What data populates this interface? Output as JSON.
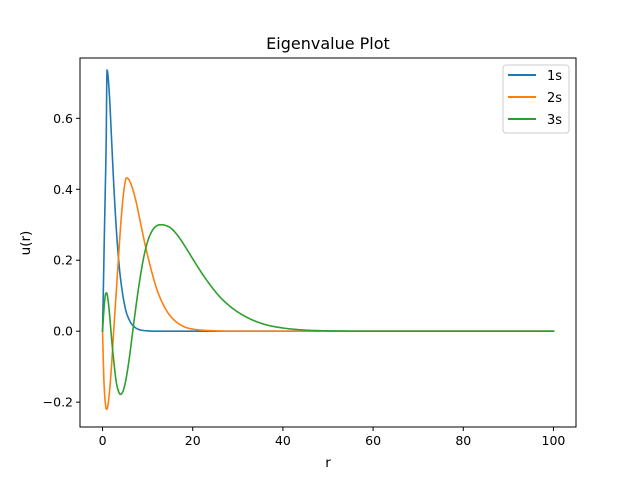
{
  "chart_data": {
    "type": "line",
    "title": "Eigenvalue Plot",
    "xlabel": "r",
    "ylabel": "u(r)",
    "xlim": [
      -5,
      105
    ],
    "ylim": [
      -0.27,
      0.77
    ],
    "xticks": [
      0,
      20,
      40,
      60,
      80,
      100
    ],
    "xtick_labels": [
      "0",
      "20",
      "40",
      "60",
      "80",
      "100"
    ],
    "yticks": [
      -0.2,
      0.0,
      0.2,
      0.4,
      0.6
    ],
    "ytick_labels": [
      "−0.2",
      "0.0",
      "0.2",
      "0.4",
      "0.6"
    ],
    "grid": false,
    "legend_position": "top-right",
    "series": [
      {
        "name": "1s",
        "color": "#1f77b4",
        "points": [
          [
            0,
            0
          ],
          [
            0.2,
            0.131
          ],
          [
            0.4,
            0.268
          ],
          [
            0.6,
            0.395
          ],
          [
            0.8,
            0.529
          ],
          [
            1,
            0.736
          ],
          [
            1.5,
            0.67
          ],
          [
            2,
            0.541
          ],
          [
            2.5,
            0.41
          ],
          [
            3,
            0.299
          ],
          [
            3.5,
            0.211
          ],
          [
            4,
            0.147
          ],
          [
            5,
            0.067
          ],
          [
            6,
            0.03
          ],
          [
            7,
            0.013
          ],
          [
            8,
            0.005
          ],
          [
            10,
            0.001
          ],
          [
            12,
            0
          ],
          [
            20,
            0
          ],
          [
            40,
            0
          ],
          [
            60,
            0
          ],
          [
            80,
            0
          ],
          [
            100,
            0
          ]
        ]
      },
      {
        "name": "2s",
        "color": "#ff7f0e",
        "points": [
          [
            0,
            0
          ],
          [
            0.3,
            -0.138
          ],
          [
            0.6,
            -0.2
          ],
          [
            0.9,
            -0.22
          ],
          [
            1.2,
            -0.208
          ],
          [
            1.6,
            -0.162
          ],
          [
            2,
            -0.096
          ],
          [
            2.5,
            0.006
          ],
          [
            3,
            0.103
          ],
          [
            3.5,
            0.2
          ],
          [
            4,
            0.295
          ],
          [
            4.5,
            0.37
          ],
          [
            5,
            0.42
          ],
          [
            5.3,
            0.432
          ],
          [
            5.8,
            0.428
          ],
          [
            6.5,
            0.408
          ],
          [
            7.5,
            0.362
          ],
          [
            8.5,
            0.3
          ],
          [
            10,
            0.213
          ],
          [
            12,
            0.12
          ],
          [
            14,
            0.062
          ],
          [
            16,
            0.03
          ],
          [
            18,
            0.013
          ],
          [
            20,
            0.006
          ],
          [
            25,
            0.001
          ],
          [
            30,
            0
          ],
          [
            50,
            0
          ],
          [
            75,
            0
          ],
          [
            100,
            0
          ]
        ]
      },
      {
        "name": "3s",
        "color": "#2ca02c",
        "points": [
          [
            0,
            0
          ],
          [
            0.3,
            0.06
          ],
          [
            0.6,
            0.1
          ],
          [
            0.9,
            0.108
          ],
          [
            1.2,
            0.09
          ],
          [
            1.5,
            0.055
          ],
          [
            2,
            -0.02
          ],
          [
            2.5,
            -0.085
          ],
          [
            3,
            -0.14
          ],
          [
            3.5,
            -0.168
          ],
          [
            4,
            -0.178
          ],
          [
            4.5,
            -0.17
          ],
          [
            5,
            -0.148
          ],
          [
            5.5,
            -0.113
          ],
          [
            6,
            -0.07
          ],
          [
            6.5,
            -0.02
          ],
          [
            7,
            0.03
          ],
          [
            8,
            0.123
          ],
          [
            9,
            0.2
          ],
          [
            10,
            0.253
          ],
          [
            11,
            0.283
          ],
          [
            12,
            0.297
          ],
          [
            13,
            0.3
          ],
          [
            14,
            0.298
          ],
          [
            15,
            0.292
          ],
          [
            16,
            0.28
          ],
          [
            17,
            0.264
          ],
          [
            18,
            0.245
          ],
          [
            20,
            0.204
          ],
          [
            22,
            0.164
          ],
          [
            24,
            0.128
          ],
          [
            26,
            0.097
          ],
          [
            28,
            0.073
          ],
          [
            30,
            0.054
          ],
          [
            33,
            0.033
          ],
          [
            36,
            0.019
          ],
          [
            40,
            0.009
          ],
          [
            45,
            0.003
          ],
          [
            50,
            0.001
          ],
          [
            60,
            0
          ],
          [
            80,
            0
          ],
          [
            100,
            0
          ]
        ]
      }
    ]
  }
}
